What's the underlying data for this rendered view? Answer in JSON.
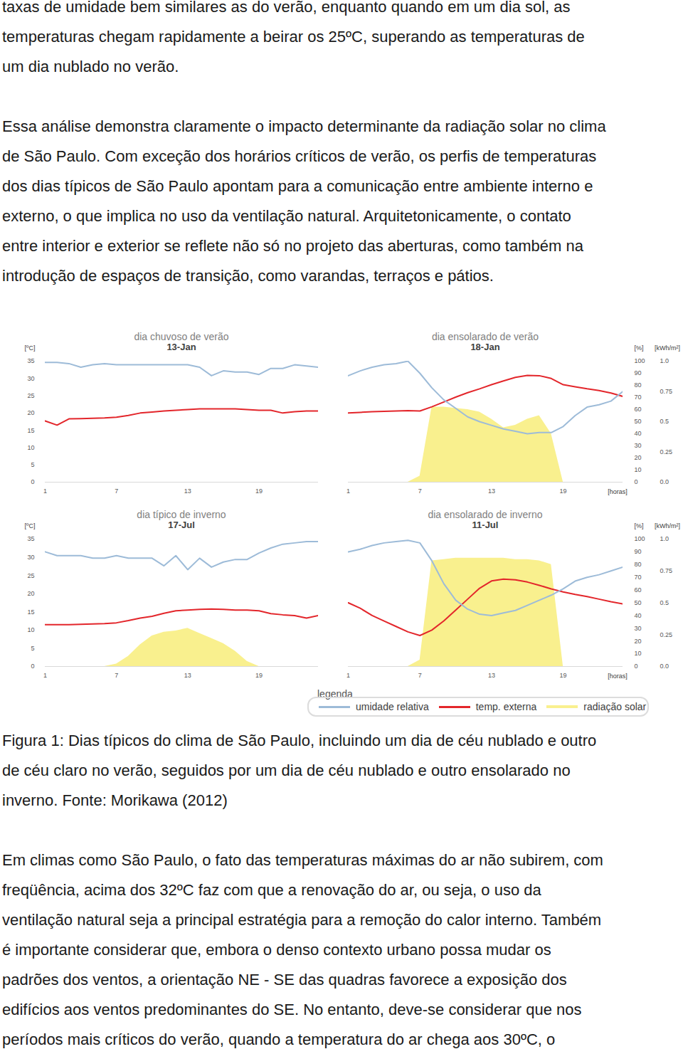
{
  "document": {
    "paragraphs_before": [
      [
        "taxas de umidade bem similares as do verão, enquanto quando em um dia sol, as",
        "temperaturas chegam rapidamente a beirar os 25ºC, superando as temperaturas de",
        "um dia nublado no verão."
      ],
      [
        "Essa análise demonstra claramente o impacto determinante da radiação solar no clima",
        "de São Paulo. Com exceção dos horários críticos de verão, os perfis de temperaturas",
        "dos dias típicos de São Paulo apontam para a comunicação entre ambiente interno e",
        "externo, o que implica no uso da ventilação natural. Arquitetonicamente, o contato",
        "entre interior e exterior se reflete não só no projeto das aberturas, como também na",
        "introdução de espaços de transição, como varandas, terraços e pátios."
      ]
    ],
    "legend_title": "legenda",
    "caption": [
      "Figura 1: Dias típicos do clima de São Paulo, incluindo um dia de céu nublado e outro",
      "de céu claro no verão, seguidos por um dia de céu nublado e outro ensolarado no",
      "inverno. Fonte: Morikawa (2012)"
    ],
    "paragraphs_after": [
      [
        "Em climas como São Paulo, o fato das temperaturas máximas do ar não subirem, com",
        "freqüência, acima dos 32ºC faz com que a renovação do ar, ou seja, o uso da",
        "ventilação natural seja a principal estratégia para a remoção do calor interno. Também",
        "é importante considerar que, embora o denso contexto urbano possa mudar os",
        "padrões dos ventos, a orientação NE - SE das quadras favorece a exposição dos",
        "edifícios aos ventos predominantes do SE. No entanto, deve-se considerar que nos",
        "períodos mais críticos do verão, quando a temperatura do ar chega aos 30ºC, o"
      ]
    ]
  },
  "chart_data": [
    {
      "type": "line",
      "title": "dia chuvoso de verão",
      "subtitle": "13-Jan",
      "x": [
        1,
        2,
        3,
        4,
        5,
        6,
        7,
        8,
        9,
        10,
        11,
        12,
        13,
        14,
        15,
        16,
        17,
        18,
        19,
        20,
        21,
        22,
        23,
        24
      ],
      "xlim": [
        1,
        24
      ],
      "xticks": [
        1,
        7,
        13,
        19
      ],
      "ylabel": "[ºC]",
      "ylim": [
        0,
        35
      ],
      "yticks": [
        0,
        5,
        10,
        15,
        20,
        25,
        30,
        35
      ],
      "y2lim": [
        0,
        100
      ],
      "y3lim": [
        0,
        1
      ],
      "series": [
        {
          "name": "umidade relativa",
          "color": "#9dbbd8",
          "axis": "y2",
          "values": [
            99,
            99,
            98,
            95,
            97,
            98,
            97,
            97,
            97,
            97,
            97,
            97,
            97,
            95,
            88,
            92,
            91,
            91,
            89,
            94,
            94,
            97,
            96,
            95
          ]
        },
        {
          "name": "temp. externa",
          "color": "#e3262b",
          "values": [
            17.7,
            16.5,
            18.3,
            18.4,
            18.5,
            18.6,
            18.8,
            19.3,
            20.0,
            20.3,
            20.6,
            20.8,
            21.0,
            21.2,
            21.2,
            21.2,
            21.2,
            21.0,
            20.8,
            20.8,
            20.0,
            20.4,
            20.6,
            20.6
          ]
        },
        {
          "name": "radiação solar",
          "color": "#f9f08e",
          "axis": "y3",
          "type": "area",
          "values": [
            0,
            0,
            0,
            0,
            0,
            0,
            0,
            0,
            0,
            0,
            0,
            0,
            0,
            0,
            0,
            0,
            0,
            0,
            0,
            0,
            0,
            0,
            0,
            0
          ]
        }
      ]
    },
    {
      "type": "line",
      "title": "dia ensolarado de verão",
      "subtitle": "18-Jan",
      "x": [
        1,
        2,
        3,
        4,
        5,
        6,
        7,
        8,
        9,
        10,
        11,
        12,
        13,
        14,
        15,
        16,
        17,
        18,
        19,
        20,
        21,
        22,
        23,
        24
      ],
      "xlim": [
        1,
        24
      ],
      "xticks": [
        1,
        7,
        13,
        19
      ],
      "xlabel": "[horas]",
      "ylim": [
        0,
        35
      ],
      "y2label": "[%]",
      "y2lim": [
        0,
        100
      ],
      "y2ticks": [
        0,
        10,
        20,
        30,
        40,
        50,
        60,
        70,
        80,
        90,
        100
      ],
      "y3label": "[kWh/m²]",
      "y3lim": [
        0,
        1
      ],
      "y3ticks": [
        {
          "value": 0,
          "label": "0.0"
        },
        0.25,
        0.5,
        0.75,
        {
          "value": 1,
          "label": "1.0"
        }
      ],
      "series": [
        {
          "name": "umidade relativa",
          "color": "#9dbbd8",
          "axis": "y2",
          "values": [
            88,
            92,
            95,
            97,
            98,
            100,
            90,
            78,
            68,
            61,
            54,
            50,
            47,
            44,
            42,
            40,
            41,
            41,
            46,
            55,
            62,
            64,
            67,
            75
          ]
        },
        {
          "name": "temp. externa",
          "color": "#e3262b",
          "values": [
            20.0,
            20.2,
            20.4,
            20.5,
            20.6,
            20.7,
            20.6,
            21.8,
            23.2,
            24.6,
            25.9,
            27.0,
            28.2,
            29.3,
            30.3,
            30.9,
            30.8,
            30.0,
            28.2,
            27.6,
            27.0,
            26.5,
            25.8,
            24.8
          ]
        },
        {
          "name": "radiação solar",
          "color": "#f9f08e",
          "axis": "y3",
          "type": "area",
          "values": [
            0,
            0,
            0,
            0,
            0,
            0,
            0.05,
            0.62,
            0.62,
            0.61,
            0.6,
            0.58,
            0.52,
            0.45,
            0.47,
            0.52,
            0.55,
            0.4,
            0,
            0,
            0,
            0,
            0,
            0
          ]
        }
      ]
    },
    {
      "type": "line",
      "title": "dia típico de inverno",
      "subtitle": "17-Jul",
      "x": [
        1,
        2,
        3,
        4,
        5,
        6,
        7,
        8,
        9,
        10,
        11,
        12,
        13,
        14,
        15,
        16,
        17,
        18,
        19,
        20,
        21,
        22,
        23,
        24
      ],
      "xlim": [
        1,
        24
      ],
      "xticks": [
        1,
        7,
        13,
        19
      ],
      "ylabel": "[ºC]",
      "ylim": [
        0,
        35
      ],
      "yticks": [
        0,
        5,
        10,
        15,
        20,
        25,
        30,
        35
      ],
      "y2lim": [
        0,
        100
      ],
      "y3lim": [
        0,
        1
      ],
      "series": [
        {
          "name": "umidade relativa",
          "color": "#9dbbd8",
          "axis": "y2",
          "values": [
            90,
            87,
            87,
            87,
            85,
            85,
            87,
            85,
            85,
            85,
            79,
            87,
            76,
            85,
            78,
            82,
            84,
            84,
            89,
            93,
            96,
            97,
            98,
            98
          ]
        },
        {
          "name": "temp. externa",
          "color": "#e3262b",
          "values": [
            11.5,
            11.5,
            11.5,
            11.6,
            11.7,
            11.8,
            12.0,
            12.6,
            13.3,
            13.8,
            14.6,
            15.3,
            15.5,
            15.7,
            15.8,
            15.7,
            15.5,
            15.5,
            15.3,
            14.5,
            14.2,
            14.0,
            13.3,
            14.0
          ]
        },
        {
          "name": "radiação solar",
          "color": "#f9f08e",
          "axis": "y3",
          "type": "area",
          "values": [
            0,
            0,
            0,
            0,
            0,
            0,
            0.02,
            0.08,
            0.17,
            0.24,
            0.27,
            0.28,
            0.3,
            0.26,
            0.22,
            0.18,
            0.12,
            0.04,
            0,
            0,
            0,
            0,
            0,
            0
          ]
        }
      ]
    },
    {
      "type": "line",
      "title": "dia ensolarado de inverno",
      "subtitle": "11-Jul",
      "x": [
        1,
        2,
        3,
        4,
        5,
        6,
        7,
        8,
        9,
        10,
        11,
        12,
        13,
        14,
        15,
        16,
        17,
        18,
        19,
        20,
        21,
        22,
        23,
        24
      ],
      "xlim": [
        1,
        24
      ],
      "xticks": [
        1,
        7,
        13,
        19
      ],
      "xlabel": "[horas]",
      "ylim": [
        0,
        35
      ],
      "y2label": "[%]",
      "y2lim": [
        0,
        100
      ],
      "y2ticks": [
        0,
        10,
        20,
        30,
        40,
        50,
        60,
        70,
        80,
        90,
        100
      ],
      "y3label": "[kWh/m²]",
      "y3lim": [
        0,
        1
      ],
      "y3ticks": [
        {
          "value": 0,
          "label": "0.0"
        },
        0.25,
        0.5,
        0.75,
        {
          "value": 1,
          "label": "1.0"
        }
      ],
      "series": [
        {
          "name": "umidade relativa",
          "color": "#9dbbd8",
          "axis": "y2",
          "values": [
            90,
            92,
            95,
            97,
            98,
            99,
            97,
            83,
            65,
            52,
            45,
            41,
            40,
            42,
            44,
            48,
            52,
            56,
            61,
            67,
            70,
            72,
            75,
            78
          ]
        },
        {
          "name": "temp. externa",
          "color": "#e3262b",
          "values": [
            17.5,
            16.0,
            14.0,
            12.5,
            11.0,
            9.5,
            8.5,
            10.0,
            12.5,
            15.5,
            18.5,
            21.5,
            23.5,
            24.0,
            23.8,
            23.2,
            22.3,
            21.3,
            20.5,
            19.8,
            19.2,
            18.5,
            17.8,
            17.2
          ]
        },
        {
          "name": "radiação solar",
          "color": "#f9f08e",
          "axis": "y3",
          "type": "area",
          "values": [
            0,
            0,
            0,
            0,
            0,
            0,
            0.05,
            0.83,
            0.84,
            0.85,
            0.85,
            0.85,
            0.85,
            0.85,
            0.84,
            0.84,
            0.83,
            0.8,
            0,
            0,
            0,
            0,
            0,
            0
          ]
        }
      ]
    }
  ]
}
